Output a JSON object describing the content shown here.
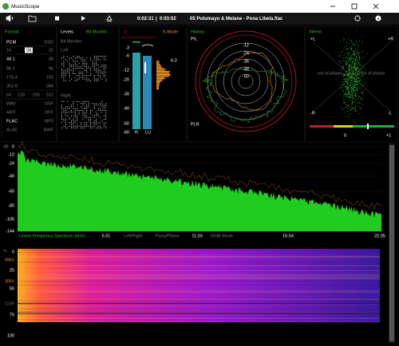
{
  "window": {
    "title": "MusicScope"
  },
  "toolbar": {
    "elapsed": "0:02:31",
    "separator": "|",
    "total": "0:03:02",
    "track": "05 Putumayo & Melane - Pona Libela.flac"
  },
  "format": {
    "title": "Format",
    "rows": [
      [
        "PCM",
        "DSD"
      ],
      [
        "16",
        "24",
        "32"
      ],
      [
        "44.1",
        "48"
      ],
      [
        "88.2",
        "96"
      ],
      [
        "176.4",
        "192"
      ],
      [
        "352.8",
        "384"
      ],
      [
        "64",
        "128",
        "256",
        "512"
      ],
      [
        "WAV",
        "DSF"
      ],
      [
        "AIFF",
        "DFF"
      ],
      [
        "FLAC",
        "MP3"
      ],
      [
        "ALAC",
        "BWF"
      ]
    ]
  },
  "levels": {
    "title": "Levels",
    "mode": "Bit Monitor",
    "subtitle": "Bit Monitor",
    "left": "Left",
    "right": "Right"
  },
  "meter": {
    "top": "0",
    "mode": "S-Mode",
    "scale": [
      "-3",
      "-6",
      "-12",
      "-20",
      "-30",
      "-40",
      "-50",
      "-60"
    ],
    "peak": "6.3",
    "r_label": "R",
    "lu_label": "LU"
  },
  "history": {
    "title": "History",
    "top_label": "P/L",
    "bottom_label": "PLR",
    "rings": [
      "-12",
      "-24",
      "-36",
      "-48",
      "-60"
    ]
  },
  "stereo": {
    "title": "Stereo",
    "plus_l": "+L",
    "plus_r": "+R",
    "minus_r": "-R",
    "minus_l": "-L",
    "phase_left": "out of phase",
    "phase_right": "out of phase",
    "scale_zero": "0",
    "scale_plus": "+1"
  },
  "spectrum": {
    "unit": "dB",
    "yticks": [
      "0",
      "-12",
      "-24",
      "-40",
      "-60",
      "-80",
      "-100",
      "-144"
    ],
    "caption": "Linear Frequency Spectrum (kHz)",
    "xlabels": [
      "5.51",
      "11.03",
      "16.54",
      "22.05"
    ],
    "modes": [
      "Left/Right",
      "Pans/Phase",
      "-20dB Mode"
    ]
  },
  "spectrogram": {
    "unit": "%",
    "labels": [
      "0",
      "25",
      "50",
      "75",
      "100"
    ],
    "markers": [
      "MAX",
      "BRY",
      "CGF"
    ]
  }
}
